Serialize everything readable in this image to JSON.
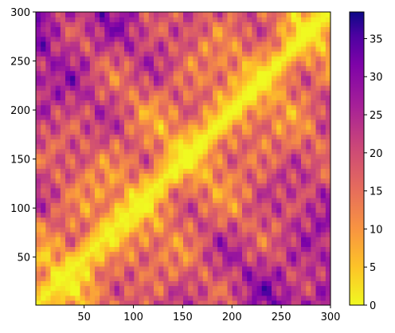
{
  "chart_data": {
    "type": "heatmap",
    "title": "",
    "xlabel": "",
    "ylabel": "",
    "xlim": [
      1,
      300
    ],
    "ylim": [
      1,
      300
    ],
    "x_ticks": [
      50,
      100,
      150,
      200,
      250,
      300
    ],
    "y_ticks": [
      50,
      100,
      150,
      200,
      250,
      300
    ],
    "colormap": "plasma_r",
    "colorbar": {
      "min": 0,
      "max": 38.5,
      "ticks": [
        0,
        5,
        10,
        15,
        20,
        25,
        30,
        35
      ]
    },
    "description_values": {
      "diagonal_value": 0,
      "corner_value_estimate": 38
    },
    "colors": {
      "low": "#f0f921",
      "mid_low": "#fca636",
      "mid": "#e16462",
      "mid_high": "#b12a90",
      "high": "#6a00a8",
      "max": "#0d0887"
    }
  }
}
